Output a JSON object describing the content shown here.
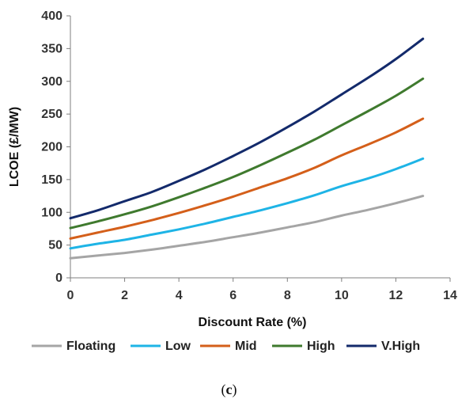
{
  "chart_data": {
    "type": "line",
    "title": "",
    "xlabel": "Discount Rate (%)",
    "ylabel": "LCOE (£/MW)",
    "xlim": [
      0,
      14
    ],
    "ylim": [
      0,
      400
    ],
    "xticks": [
      0,
      2,
      4,
      6,
      8,
      10,
      12,
      14
    ],
    "yticks": [
      0,
      50,
      100,
      150,
      200,
      250,
      300,
      350,
      400
    ],
    "grid": false,
    "legend_position": "bottom",
    "x": [
      0,
      1,
      2,
      3,
      4,
      5,
      6,
      7,
      8,
      9,
      10,
      11,
      12,
      13
    ],
    "series": [
      {
        "name": "Floating",
        "color": "#a5a5a5",
        "values": [
          30,
          34,
          38,
          43,
          49,
          55,
          62,
          69,
          77,
          85,
          95,
          104,
          114,
          125
        ]
      },
      {
        "name": "Low",
        "color": "#1eb4e6",
        "values": [
          45,
          52,
          58,
          66,
          74,
          83,
          93,
          103,
          114,
          126,
          140,
          152,
          166,
          182
        ]
      },
      {
        "name": "Mid",
        "color": "#d45f1a",
        "values": [
          60,
          69,
          78,
          88,
          99,
          111,
          124,
          138,
          152,
          168,
          187,
          204,
          222,
          243
        ]
      },
      {
        "name": "High",
        "color": "#3f7a2e",
        "values": [
          76,
          86,
          97,
          109,
          123,
          138,
          154,
          172,
          191,
          211,
          233,
          255,
          278,
          304
        ]
      },
      {
        "name": "V.High",
        "color": "#132a6b",
        "values": [
          91,
          103,
          117,
          131,
          148,
          166,
          186,
          207,
          230,
          254,
          280,
          306,
          334,
          365
        ]
      }
    ]
  },
  "caption": {
    "open": "(",
    "letter": "c",
    "close": ")"
  }
}
